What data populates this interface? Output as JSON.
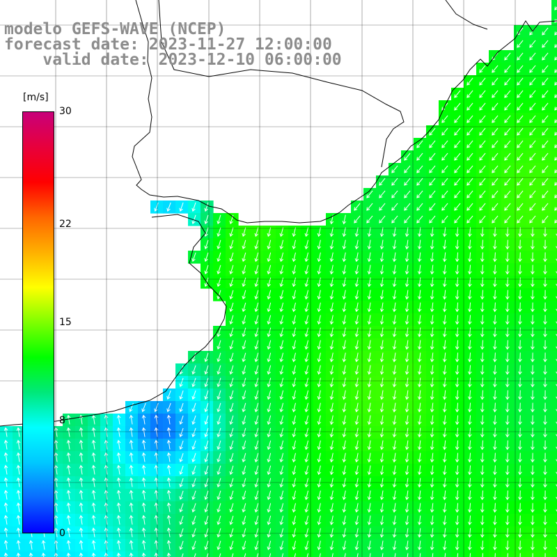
{
  "title": {
    "line1": "modelo GEFS-WAVE (NCEP)",
    "line2": "forecast date: 2023-11-27 12:00:00",
    "line3": "    valid date: 2023-12-10 06:00:00"
  },
  "colorbar": {
    "unit": "[m/s]",
    "min": 0,
    "max": 30,
    "ticks": [
      {
        "label": "30",
        "value": 30
      },
      {
        "label": "22",
        "value": 22
      },
      {
        "label": "15",
        "value": 15
      },
      {
        "label": "8",
        "value": 8
      },
      {
        "label": "0",
        "value": 0
      }
    ],
    "stops": [
      "#0000ff",
      "#0a6cff",
      "#00c8ff",
      "#00ffff",
      "#00e87a",
      "#00ff00",
      "#7fff00",
      "#ffff00",
      "#ffb000",
      "#ff6600",
      "#ff0000",
      "#e8003c",
      "#c8007a"
    ]
  },
  "map": {
    "ocean_min_speed": 2,
    "land_color": "#ffffff",
    "grid_color": "#000000",
    "arrow_color": "#ffffff",
    "coast_color": "#000000"
  }
}
